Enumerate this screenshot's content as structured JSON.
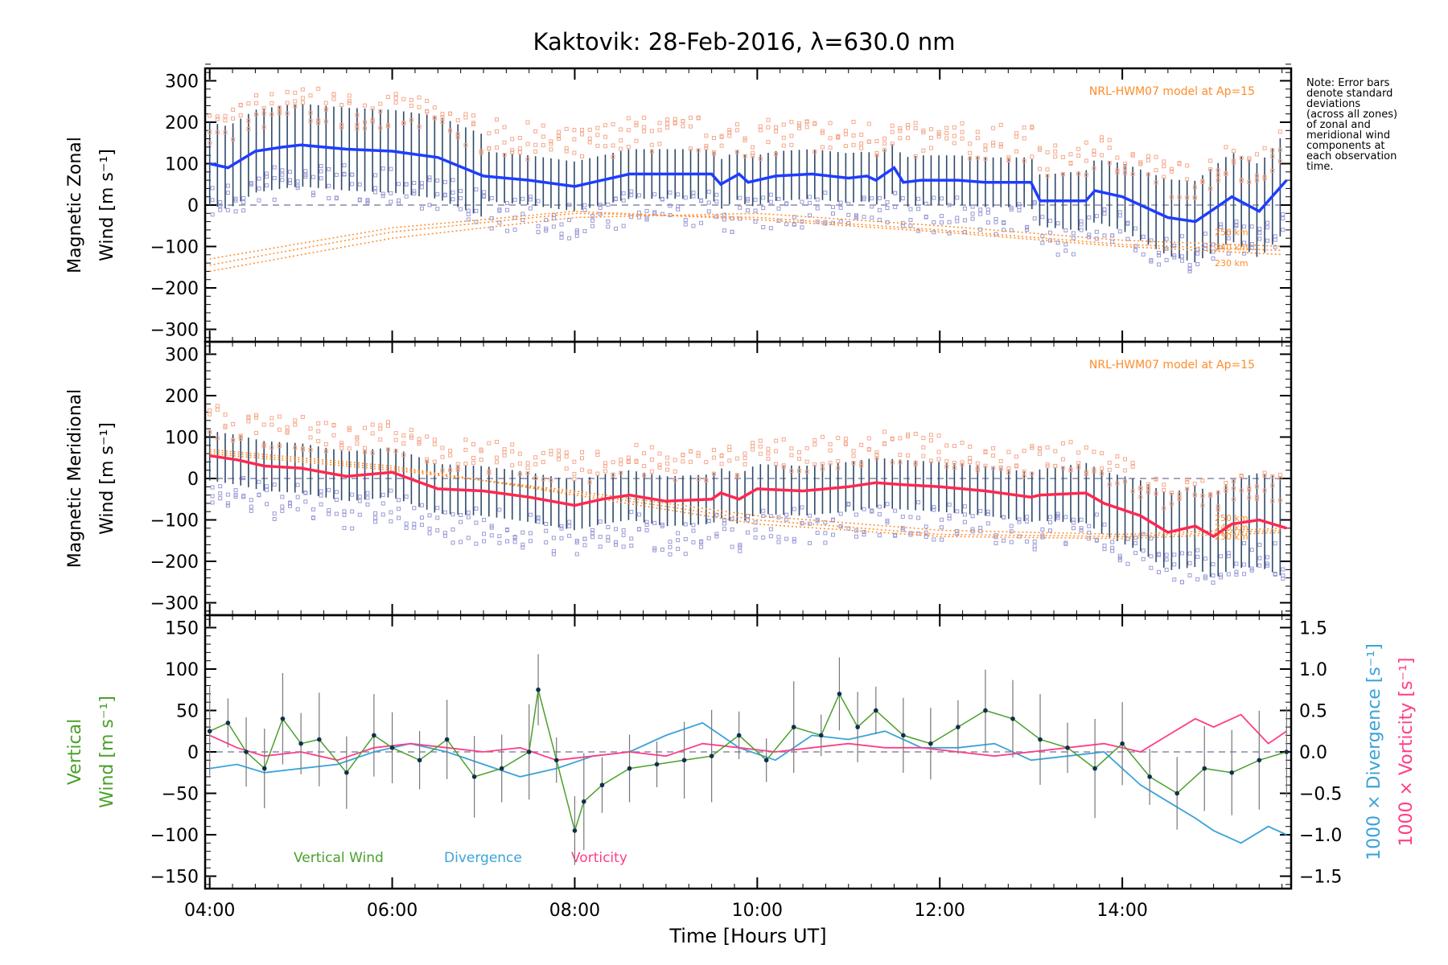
{
  "title": "Kaktovik: 28-Feb-2016, λ=630.0 nm",
  "note": [
    "Note: Error bars",
    "denote standard",
    "deviations",
    "(across all zones)",
    "of zonal and",
    "meridional wind",
    "components at",
    "each observation",
    "time."
  ],
  "model_label": "NRL-HWM07 model at Ap=15",
  "model_heights": [
    "250 km",
    "240 km",
    "230 km"
  ],
  "colors": {
    "zonal": "#1f3dff",
    "meridional": "#ff2850",
    "vertical": "#4aa02c",
    "divergence": "#3ba3d9",
    "vorticity": "#ff3d86",
    "model": "#ff8c2a",
    "east_points": "#f5a88c",
    "west_points": "#9a9ad8",
    "error_bars": "#2d4a6a"
  },
  "chart_data": [
    {
      "type": "line",
      "panel": "zonal",
      "ylabel": [
        "Magnetic Zonal",
        "Wind [m s⁻¹]"
      ],
      "ylim": [
        -330,
        330
      ],
      "yticks": [
        "300",
        "200",
        "100",
        "0",
        "−100",
        "−200",
        "−300"
      ],
      "yticks_values": [
        300,
        200,
        100,
        0,
        -100,
        -200,
        -300
      ],
      "series": [
        {
          "x": [
            4.0,
            4.2,
            4.5,
            4.8,
            5.0,
            5.5,
            6.0,
            6.5,
            7.0,
            7.5,
            8.0,
            8.3,
            8.6,
            9.0,
            9.5,
            9.6,
            9.8,
            9.9,
            10.2,
            10.6,
            11.0,
            11.2,
            11.3,
            11.5,
            11.6,
            11.8,
            12.2,
            12.5,
            13.0,
            13.1,
            13.6,
            13.7,
            14.0,
            14.2,
            14.5,
            14.8,
            15.0,
            15.2,
            15.5,
            15.8
          ],
          "y": [
            100,
            90,
            130,
            140,
            145,
            135,
            130,
            115,
            70,
            60,
            45,
            60,
            75,
            75,
            75,
            50,
            75,
            55,
            70,
            75,
            65,
            70,
            60,
            90,
            55,
            60,
            60,
            55,
            55,
            10,
            10,
            35,
            20,
            0,
            -30,
            -40,
            -10,
            20,
            -15,
            60
          ]
        }
      ],
      "model_series": [
        {
          "name": "250 km",
          "x": [
            4.0,
            6.0,
            8.0,
            10.0,
            12.0,
            14.0,
            15.8
          ],
          "y": [
            -160,
            -80,
            -30,
            -20,
            -50,
            -85,
            -100
          ]
        },
        {
          "name": "240 km",
          "x": [
            4.0,
            6.0,
            8.0,
            10.0,
            12.0,
            14.0,
            15.8
          ],
          "y": [
            -145,
            -65,
            -20,
            -30,
            -60,
            -95,
            -110
          ]
        },
        {
          "name": "230 km",
          "x": [
            4.0,
            6.0,
            8.0,
            10.0,
            12.0,
            14.0,
            15.8
          ],
          "y": [
            -130,
            -55,
            -15,
            -35,
            -65,
            -100,
            -120
          ]
        }
      ]
    },
    {
      "type": "line",
      "panel": "meridional",
      "ylabel": [
        "Magnetic Meridional",
        "Wind [m s⁻¹]"
      ],
      "ylim": [
        -330,
        330
      ],
      "yticks": [
        "300",
        "200",
        "100",
        "0",
        "−100",
        "−200",
        "−300"
      ],
      "yticks_values": [
        300,
        200,
        100,
        0,
        -100,
        -200,
        -300
      ],
      "series": [
        {
          "x": [
            4.0,
            4.3,
            4.6,
            5.0,
            5.5,
            6.0,
            6.5,
            7.0,
            7.5,
            8.0,
            8.3,
            8.6,
            9.0,
            9.5,
            9.6,
            9.8,
            10.0,
            10.5,
            11.0,
            11.3,
            11.6,
            12.0,
            12.5,
            13.0,
            13.1,
            13.6,
            13.8,
            14.2,
            14.5,
            14.8,
            15.0,
            15.2,
            15.5,
            15.8
          ],
          "y": [
            55,
            45,
            30,
            25,
            5,
            15,
            -25,
            -30,
            -45,
            -65,
            -50,
            -40,
            -55,
            -50,
            -35,
            -50,
            -25,
            -30,
            -20,
            -10,
            -15,
            -20,
            -30,
            -45,
            -40,
            -35,
            -60,
            -90,
            -130,
            -115,
            -140,
            -110,
            -100,
            -120
          ]
        }
      ],
      "model_series": [
        {
          "name": "250 km",
          "x": [
            4.0,
            6.0,
            8.0,
            10.0,
            12.0,
            14.0,
            15.8
          ],
          "y": [
            70,
            30,
            -40,
            -110,
            -140,
            -145,
            -130
          ]
        },
        {
          "name": "240 km",
          "x": [
            4.0,
            6.0,
            8.0,
            10.0,
            12.0,
            14.0,
            15.8
          ],
          "y": [
            65,
            25,
            -35,
            -100,
            -135,
            -140,
            -125
          ]
        },
        {
          "name": "230 km",
          "x": [
            4.0,
            6.0,
            8.0,
            10.0,
            12.0,
            14.0,
            15.8
          ],
          "y": [
            60,
            20,
            -30,
            -90,
            -125,
            -135,
            -120
          ]
        }
      ]
    },
    {
      "type": "line",
      "panel": "vertical",
      "xlabel": "Time [Hours UT]",
      "xlim": [
        3.95,
        15.85
      ],
      "xticks": [
        "04:00",
        "06:00",
        "08:00",
        "10:00",
        "12:00",
        "14:00"
      ],
      "xticks_values": [
        4,
        6,
        8,
        10,
        12,
        14
      ],
      "ylabel": [
        "Vertical",
        "Wind [m s⁻¹]"
      ],
      "ylim": [
        -165,
        165
      ],
      "yticks": [
        "150",
        "100",
        "50",
        "0",
        "−50",
        "−100",
        "−150"
      ],
      "yticks_values": [
        150,
        100,
        50,
        0,
        -50,
        -100,
        -150
      ],
      "y2label": [
        "1000 × Divergence [s⁻¹]",
        "1000 × Vorticity [s⁻¹]"
      ],
      "y2lim": [
        -1.65,
        1.65
      ],
      "y2ticks": [
        "1.5",
        "1.0",
        "0.5",
        "0.0",
        "−0.5",
        "−1.0",
        "−1.5"
      ],
      "y2ticks_values": [
        1.5,
        1.0,
        0.5,
        0.0,
        -0.5,
        -1.0,
        -1.5
      ],
      "legend": [
        "Vertical Wind",
        "Divergence",
        "Vorticity"
      ],
      "series": [
        {
          "name": "Vertical Wind",
          "axis": "left",
          "x": [
            4.0,
            4.2,
            4.4,
            4.6,
            4.8,
            5.0,
            5.2,
            5.5,
            5.8,
            6.0,
            6.3,
            6.6,
            6.9,
            7.2,
            7.5,
            7.6,
            7.8,
            8.0,
            8.1,
            8.3,
            8.6,
            8.9,
            9.2,
            9.5,
            9.8,
            10.1,
            10.4,
            10.7,
            10.9,
            11.1,
            11.3,
            11.6,
            11.9,
            12.2,
            12.5,
            12.8,
            13.1,
            13.4,
            13.7,
            14.0,
            14.3,
            14.6,
            14.9,
            15.2,
            15.5,
            15.8
          ],
          "y": [
            25,
            35,
            0,
            -20,
            40,
            10,
            15,
            -25,
            20,
            5,
            -10,
            15,
            -30,
            -20,
            0,
            75,
            -10,
            -95,
            -60,
            -40,
            -20,
            -15,
            -10,
            -5,
            20,
            -10,
            30,
            20,
            70,
            30,
            50,
            20,
            10,
            30,
            50,
            40,
            15,
            5,
            -20,
            10,
            -30,
            -50,
            -20,
            -25,
            -10,
            0
          ]
        },
        {
          "name": "Divergence",
          "axis": "right",
          "x": [
            4.0,
            4.3,
            4.6,
            5.0,
            5.4,
            5.8,
            6.2,
            6.6,
            7.0,
            7.4,
            7.8,
            8.2,
            8.6,
            9.0,
            9.4,
            9.8,
            10.2,
            10.6,
            11.0,
            11.4,
            11.8,
            12.2,
            12.6,
            13.0,
            13.4,
            13.8,
            14.2,
            14.5,
            14.8,
            15.0,
            15.3,
            15.6,
            15.8
          ],
          "y": [
            -0.2,
            -0.15,
            -0.25,
            -0.2,
            -0.15,
            0.0,
            0.1,
            0.0,
            -0.15,
            -0.3,
            -0.2,
            -0.05,
            0.0,
            0.2,
            0.35,
            0.05,
            -0.1,
            0.2,
            0.15,
            0.25,
            0.05,
            0.05,
            0.1,
            -0.1,
            -0.05,
            0.0,
            -0.4,
            -0.6,
            -0.8,
            -0.95,
            -1.1,
            -0.9,
            -1.0
          ]
        },
        {
          "name": "Vorticity",
          "axis": "right",
          "x": [
            4.0,
            4.3,
            4.6,
            5.0,
            5.4,
            5.8,
            6.2,
            6.6,
            7.0,
            7.4,
            7.8,
            8.2,
            8.6,
            9.0,
            9.4,
            9.8,
            10.2,
            10.6,
            11.0,
            11.4,
            11.8,
            12.2,
            12.6,
            13.0,
            13.4,
            13.8,
            14.2,
            14.5,
            14.8,
            15.0,
            15.3,
            15.6,
            15.8
          ],
          "y": [
            0.2,
            0.05,
            -0.05,
            0.0,
            -0.1,
            0.05,
            0.1,
            0.05,
            0.0,
            0.05,
            -0.1,
            -0.05,
            0.0,
            -0.05,
            0.1,
            0.05,
            0.0,
            0.05,
            0.1,
            0.05,
            0.05,
            0.0,
            -0.05,
            0.0,
            0.05,
            0.1,
            0.0,
            0.2,
            0.4,
            0.3,
            0.45,
            0.1,
            0.25
          ]
        }
      ]
    }
  ]
}
